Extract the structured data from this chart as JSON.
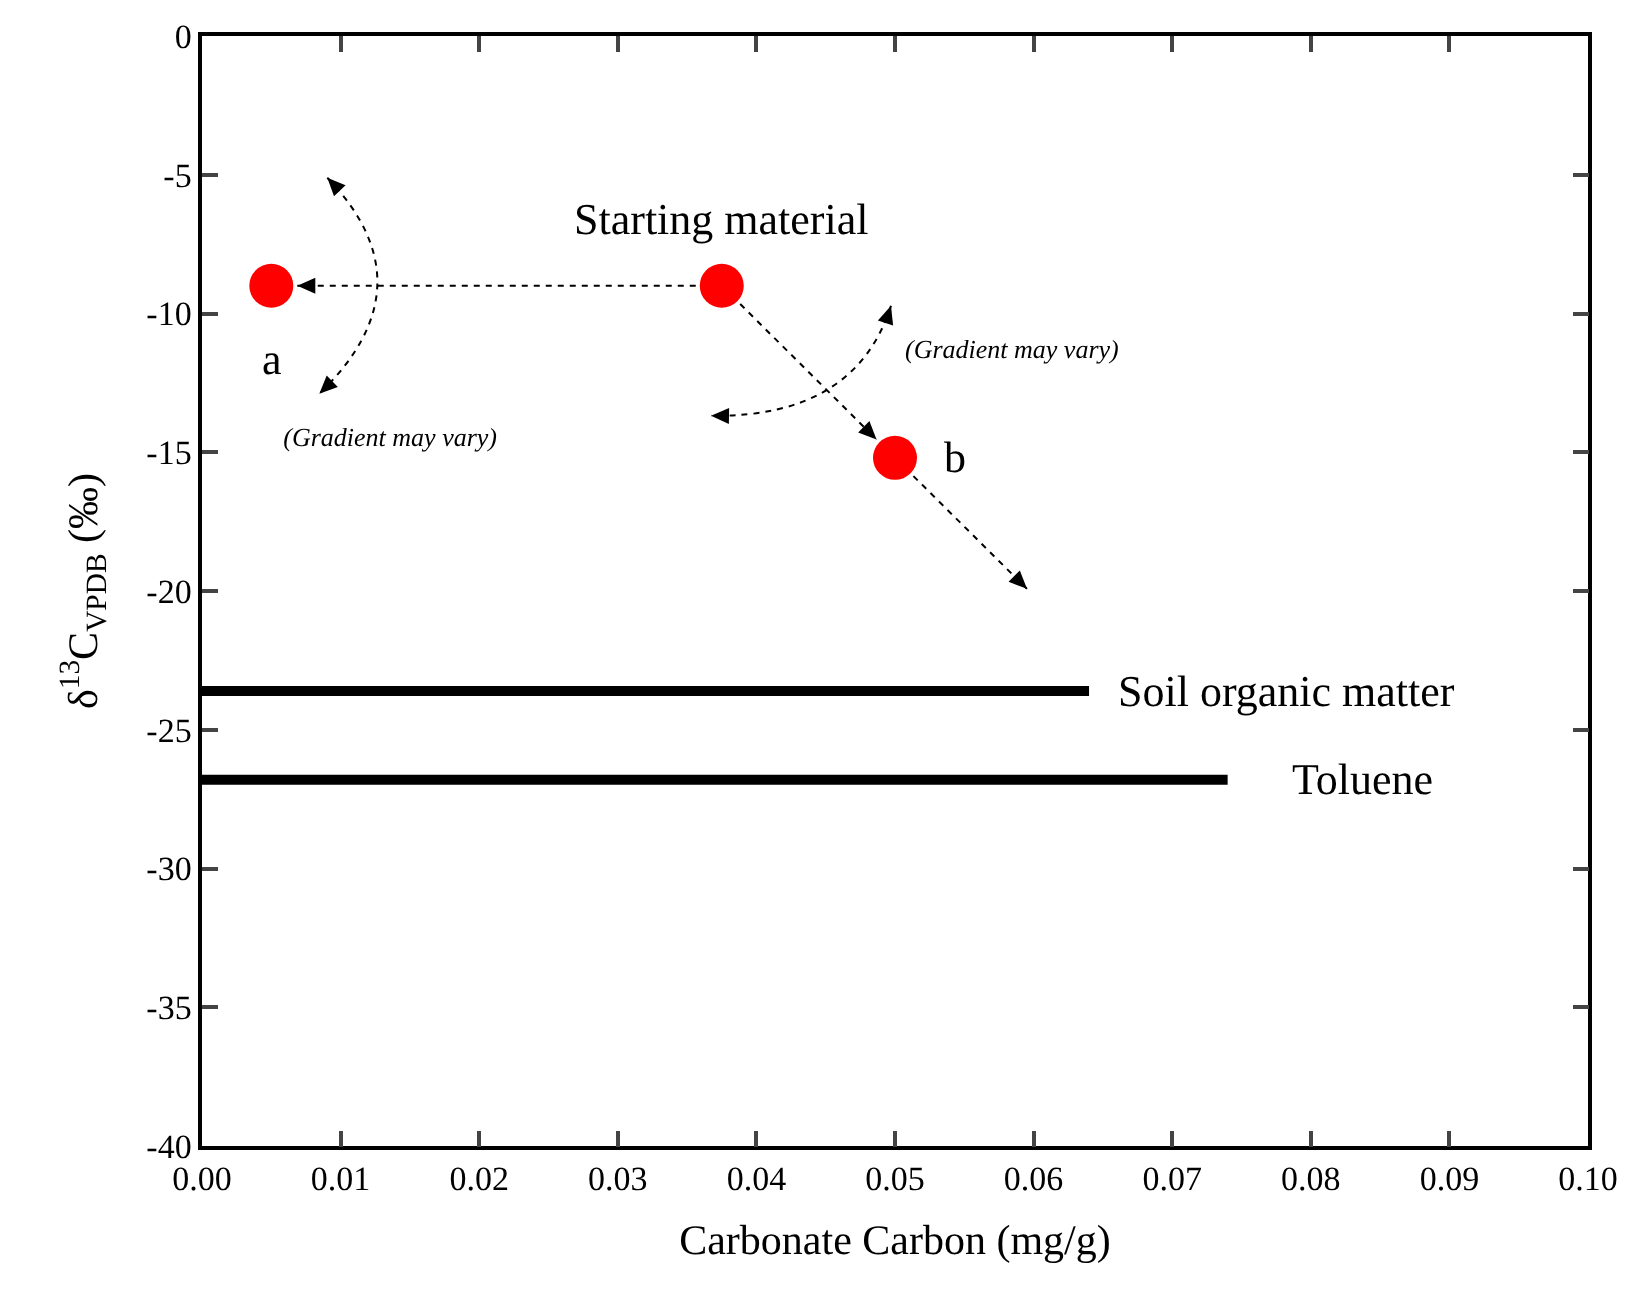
{
  "chart_data": {
    "type": "scatter",
    "xlabel": "Carbonate Carbon (mg/g)",
    "ylabel": "δ$^{13}$C$_{VPDB}$ (‰)",
    "xlim": [
      0,
      0.1
    ],
    "ylim": [
      -40,
      0
    ],
    "xticks": [
      {
        "value": 0,
        "label": "0.00"
      },
      {
        "value": 0.01,
        "label": "0.01"
      },
      {
        "value": 0.02,
        "label": "0.02"
      },
      {
        "value": 0.03,
        "label": "0.03"
      },
      {
        "value": 0.04,
        "label": "0.04"
      },
      {
        "value": 0.05,
        "label": "0.05"
      },
      {
        "value": 0.06,
        "label": "0.06"
      },
      {
        "value": 0.07,
        "label": "0.07"
      },
      {
        "value": 0.08,
        "label": "0.08"
      },
      {
        "value": 0.09,
        "label": "0.09"
      },
      {
        "value": 0.1,
        "label": "0.10"
      }
    ],
    "yticks": [
      0,
      -5,
      -10,
      -15,
      -20,
      -25,
      -30,
      -35,
      -40
    ],
    "grid": false,
    "legend": false,
    "series": [
      {
        "marker": "circle",
        "color": "#ff0000",
        "x": [
          0.005,
          0.0375,
          0.05
        ],
        "values": [
          -9,
          -9,
          -15.2
        ]
      },
      {
        "type": "line",
        "marker": "none",
        "name": "Soil organic matter",
        "color": "#000000",
        "x": [
          0,
          0.064
        ],
        "values": [
          -23.6,
          -23.6
        ]
      },
      {
        "type": "line",
        "marker": "none",
        "name": "Toluene",
        "color": "#000000",
        "x": [
          0,
          0.074
        ],
        "values": [
          -26.8,
          -26.8
        ]
      }
    ],
    "annotations": [
      {
        "text": "a",
        "x": 0.005,
        "y": -9
      },
      {
        "text": "Starting material",
        "x": 0.0375,
        "y": -9
      },
      {
        "text": "b",
        "x": 0.05,
        "y": -15.2
      },
      "(Gradient may vary)",
      "(Gradient may vary)"
    ]
  }
}
